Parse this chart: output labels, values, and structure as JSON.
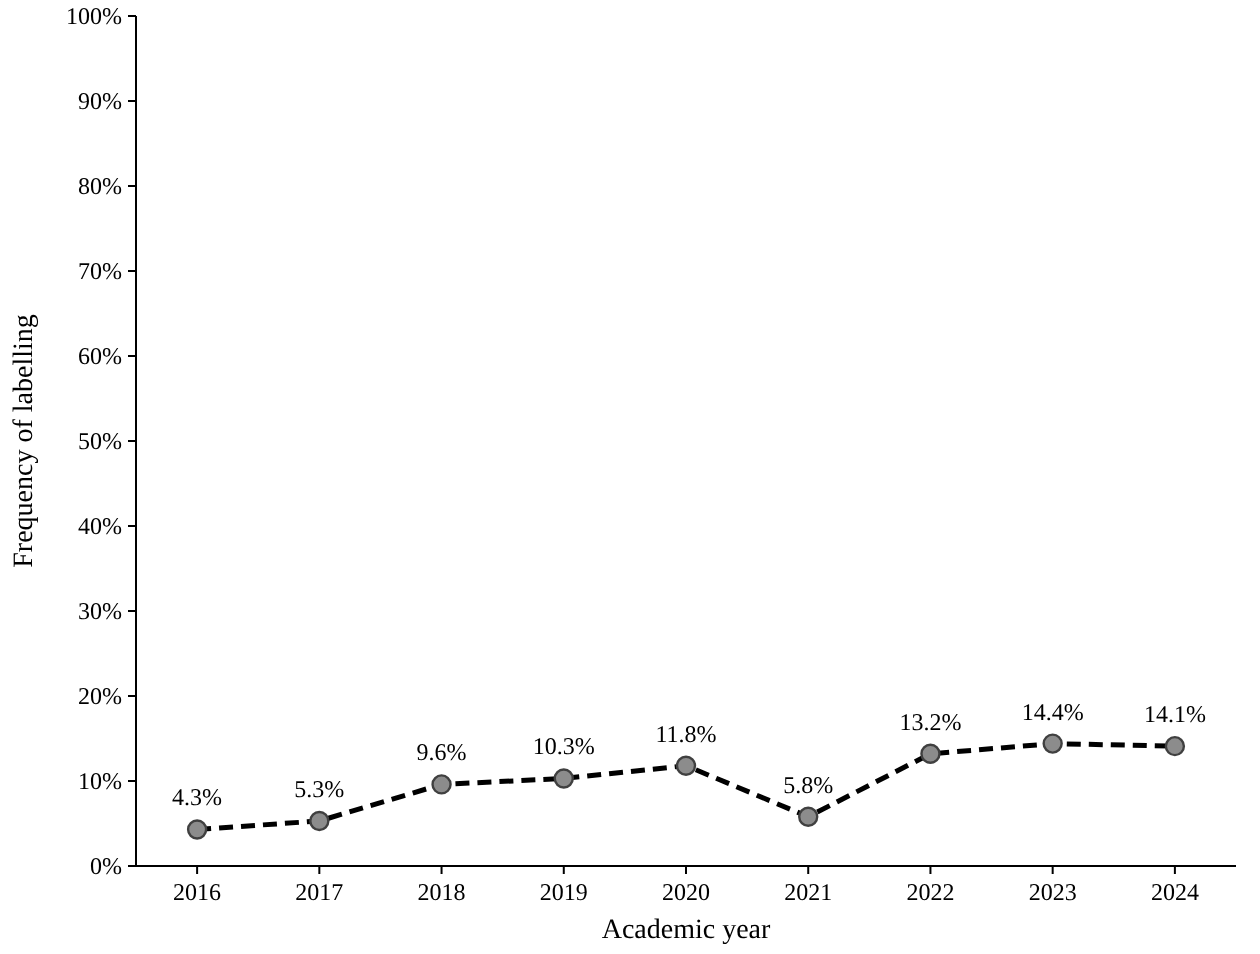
{
  "chart_data": {
    "type": "line",
    "xlabel": "Academic year",
    "ylabel": "Frequency of labelling",
    "categories": [
      "2016",
      "2017",
      "2018",
      "2019",
      "2020",
      "2021",
      "2022",
      "2023",
      "2024"
    ],
    "series": [
      {
        "color": "#000000",
        "values": [
          4.3,
          5.3,
          9.6,
          10.3,
          11.8,
          5.8,
          13.2,
          14.4,
          14.1
        ],
        "value_labels": [
          "4.3%",
          "5.3%",
          "9.6%",
          "10.3%",
          "11.8%",
          "5.8%",
          "13.2%",
          "14.4%",
          "14.1%"
        ]
      }
    ],
    "ylim": [
      0,
      100
    ],
    "yticks": [
      {
        "value": 0,
        "label": "0%"
      },
      {
        "value": 10,
        "label": "10%"
      },
      {
        "value": 20,
        "label": "20%"
      },
      {
        "value": 30,
        "label": "30%"
      },
      {
        "value": 40,
        "label": "40%"
      },
      {
        "value": 50,
        "label": "50%"
      },
      {
        "value": 60,
        "label": "60%"
      },
      {
        "value": 70,
        "label": "70%"
      },
      {
        "value": 80,
        "label": "80%"
      },
      {
        "value": 90,
        "label": "90%"
      },
      {
        "value": 100,
        "label": "100%"
      }
    ],
    "grid": false,
    "marker": "circle",
    "line_style": "dashed"
  }
}
